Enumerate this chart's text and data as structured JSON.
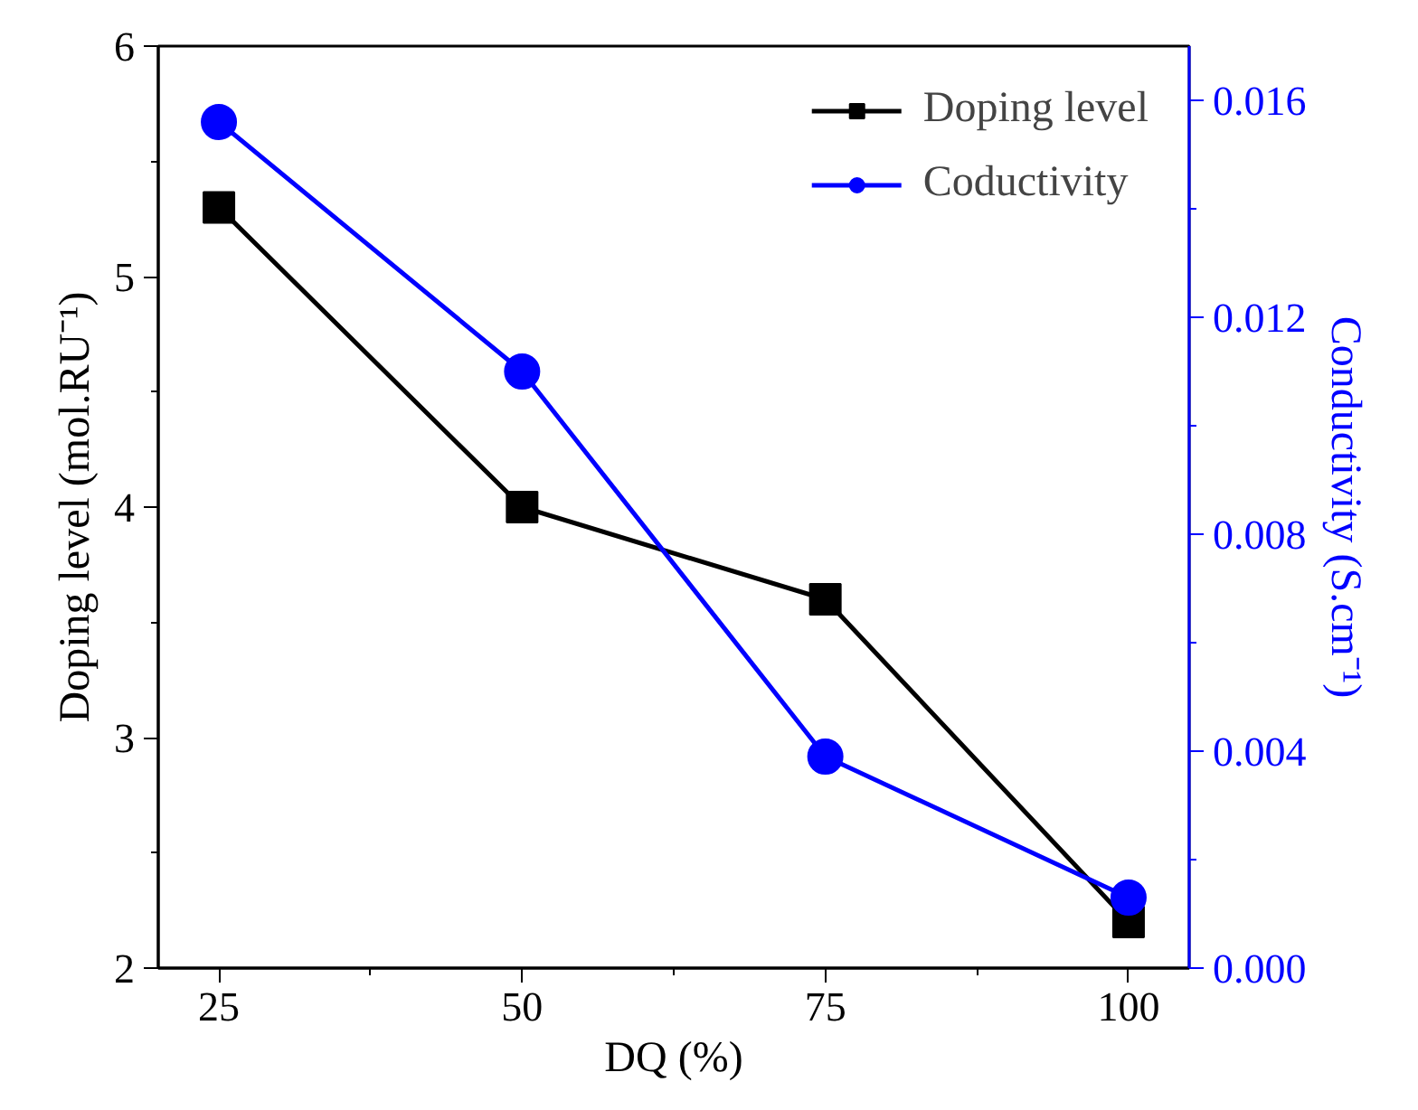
{
  "chart_data": {
    "type": "line",
    "xlabel": "DQ (%)",
    "ylabel": "Doping level (mol.RU⁻¹)",
    "y2label": "Conductivity (S.cm⁻¹)",
    "x": [
      25,
      50,
      75,
      100
    ],
    "series": [
      {
        "name": "Doping level",
        "color": "#000000",
        "marker": "square",
        "values": [
          5.3,
          4.0,
          3.6,
          2.2
        ]
      },
      {
        "name": "Coductivity",
        "color": "#0000ff",
        "marker": "circle",
        "axis": "y2",
        "values": [
          0.0156,
          0.011,
          0.0039,
          0.0013
        ]
      }
    ],
    "xlim": [
      20,
      105
    ],
    "xticks": [
      25,
      50,
      75,
      100
    ],
    "ylim": [
      2,
      6
    ],
    "yticks": [
      2,
      3,
      4,
      5,
      6
    ],
    "y2lim": [
      0,
      0.017
    ],
    "y2ticks": [
      {
        "value": 0,
        "label": "0.000"
      },
      {
        "value": 0.004,
        "label": "0.004"
      },
      {
        "value": 0.008,
        "label": "0.008"
      },
      {
        "value": 0.012,
        "label": "0.012"
      },
      {
        "value": 0.016,
        "label": "0.016"
      }
    ],
    "grid": false,
    "legend": "top right",
    "line_style": "solid"
  }
}
